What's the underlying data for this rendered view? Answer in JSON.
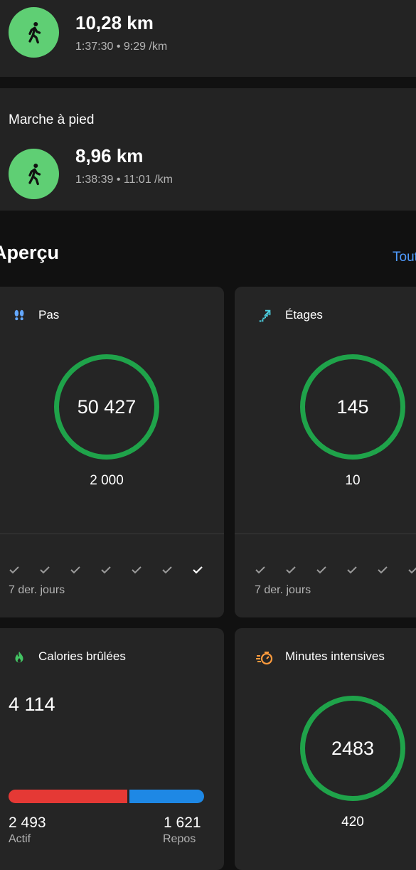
{
  "activities": [
    {
      "label": "",
      "distance": "10,28 km",
      "details": "1:37:30 • 9:29 /km",
      "icon": "walking-icon"
    },
    {
      "label": "Marche à pied",
      "distance": "8,96 km",
      "details": "1:38:39 • 11:01 /km",
      "icon": "walking-icon"
    }
  ],
  "overview": {
    "title": "Aperçu",
    "link": "Tout",
    "steps": {
      "title": "Pas",
      "value": "50 427",
      "goal": "2 000",
      "days_label": "7 der. jours",
      "icon": "footprints-icon"
    },
    "floors": {
      "title": "Étages",
      "value": "145",
      "goal": "10",
      "days_label": "7 der. jours",
      "icon": "stairs-icon"
    },
    "calories": {
      "title": "Calories brûlées",
      "value": "4 114",
      "active_value": "2 493",
      "active_label": "Actif",
      "rest_value": "1 621",
      "rest_label": "Repos",
      "active_fraction": 0.606,
      "icon": "flame-icon"
    },
    "intensity": {
      "title": "Minutes intensives",
      "value": "2483",
      "goal": "420",
      "icon": "stopwatch-icon"
    }
  },
  "colors": {
    "accent_green": "#1fa34a",
    "activity_icon_bg": "#5fcf74",
    "link_blue": "#4f9bff",
    "calories_active": "#e53935",
    "calories_rest": "#1e88e5"
  }
}
